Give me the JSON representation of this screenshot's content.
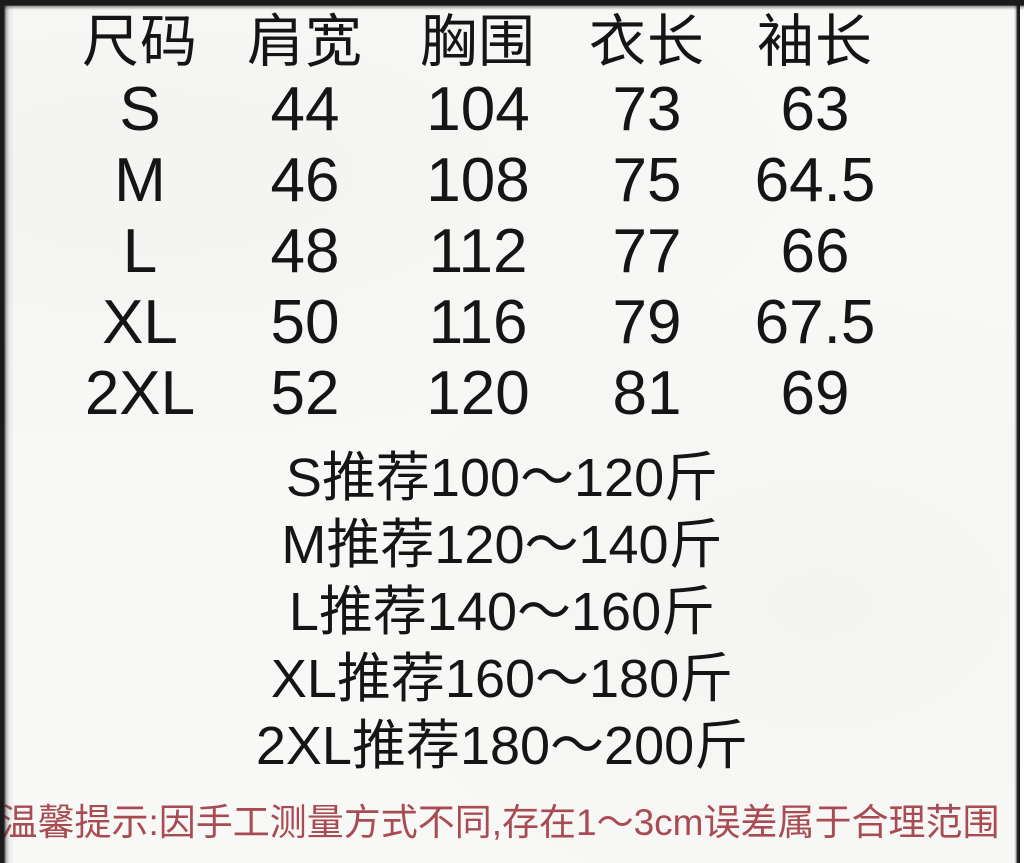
{
  "table": {
    "headers": [
      "尺码",
      "肩宽",
      "胸围",
      "衣长",
      "袖长"
    ],
    "rows": [
      [
        "S",
        "44",
        "104",
        "73",
        "63"
      ],
      [
        "M",
        "46",
        "108",
        "75",
        "64.5"
      ],
      [
        "L",
        "48",
        "112",
        "77",
        "66"
      ],
      [
        "XL",
        "50",
        "116",
        "79",
        "67.5"
      ],
      [
        "2XL",
        "52",
        "120",
        "81",
        "69"
      ]
    ]
  },
  "recommendations": [
    "S推荐100～120斤",
    "M推荐120～140斤",
    "L推荐140～160斤",
    "XL推荐160～180斤",
    "2XL推荐180～200斤"
  ],
  "notice": "温馨提示:因手工测量方式不同,存在1～3cm误差属于合理范围",
  "colors": {
    "notice_red": "#a94b52",
    "text": "#151515",
    "background": "#f8f8f6"
  }
}
